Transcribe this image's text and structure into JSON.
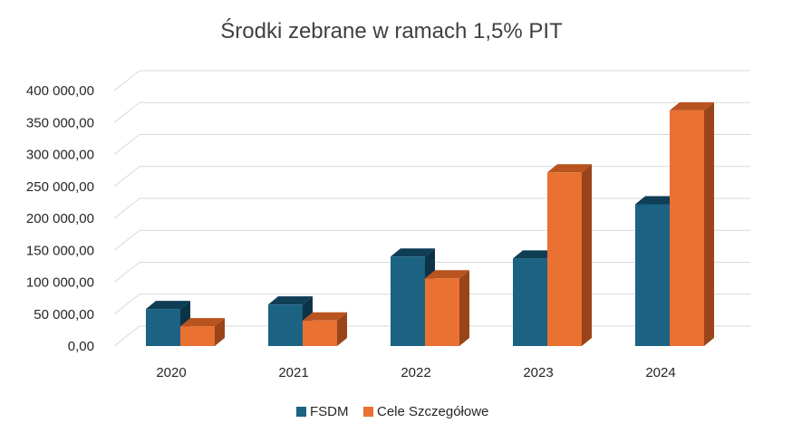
{
  "colors": {
    "series_front": [
      "#1b6283",
      "#e97132"
    ],
    "series_top": [
      "#0f3e55",
      "#b9531f"
    ],
    "series_side": [
      "#0c3346",
      "#9a441a"
    ],
    "grid": "#d9d9d9",
    "text": "#262626",
    "title": "#404040"
  },
  "chart_data": {
    "type": "bar",
    "title": "Środki zebrane w ramach 1,5% PIT",
    "categories": [
      "2020",
      "2021",
      "2022",
      "2023",
      "2024"
    ],
    "series": [
      {
        "name": "FSDM",
        "values": [
          58000,
          65000,
          140000,
          137000,
          222000
        ]
      },
      {
        "name": "Cele Szczegółowe",
        "values": [
          31000,
          40000,
          106000,
          272000,
          369000
        ]
      }
    ],
    "ylim": [
      0,
      400000
    ],
    "yticks": [
      0,
      50000,
      100000,
      150000,
      200000,
      250000,
      300000,
      350000,
      400000
    ],
    "ytick_labels": [
      "0,00",
      "50 000,00",
      "100 000,00",
      "150 000,00",
      "200 000,00",
      "250 000,00",
      "300 000,00",
      "350 000,00",
      "400 000,00"
    ],
    "grid": true,
    "legend_position": "bottom",
    "projection": "3d"
  }
}
